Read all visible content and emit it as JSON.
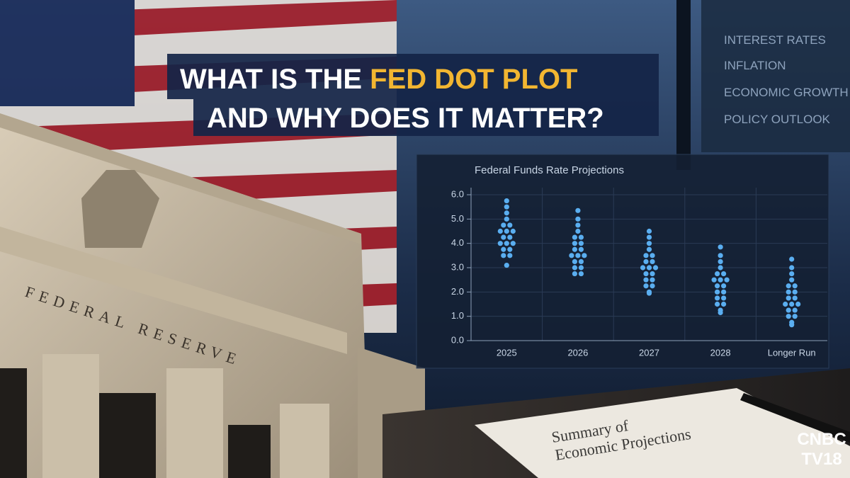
{
  "headline": {
    "line1_start": "WHAT IS THE",
    "line1_highlight": "FED DOT PLOT",
    "line2": "AND WHY DOES IT MATTER?"
  },
  "side_panel": [
    "INTEREST RATES",
    "INFLATION",
    "ECONOMIC GROWTH",
    "POLICY OUTLOOK"
  ],
  "building_inscription": "FEDERAL RESERVE",
  "document": {
    "line1": "Summary of",
    "line2": "Economic Projections"
  },
  "logo": {
    "line1": "CNBC",
    "line2": "TV18"
  },
  "chart_data": {
    "type": "dot",
    "title": "Federal Funds Rate Projections",
    "color": "#5aaef0",
    "categories": [
      "2025",
      "2026",
      "2027",
      "2028",
      "Longer Run"
    ],
    "values": [
      [
        5.75,
        5.5,
        5.25,
        5.0,
        4.75,
        4.75,
        4.5,
        4.5,
        4.5,
        4.25,
        4.25,
        4.0,
        4.0,
        4.0,
        3.75,
        3.75,
        3.5,
        3.5,
        3.1
      ],
      [
        5.35,
        5.0,
        4.75,
        4.5,
        4.25,
        4.25,
        4.0,
        4.0,
        3.75,
        3.75,
        3.5,
        3.5,
        3.5,
        3.25,
        3.25,
        3.0,
        3.0,
        2.75,
        2.75
      ],
      [
        4.5,
        4.25,
        4.0,
        3.75,
        3.5,
        3.5,
        3.25,
        3.25,
        3.0,
        3.0,
        3.0,
        2.75,
        2.75,
        2.5,
        2.5,
        2.25,
        2.25,
        2.0,
        1.95
      ],
      [
        3.85,
        3.5,
        3.25,
        3.0,
        2.75,
        2.75,
        2.5,
        2.5,
        2.5,
        2.25,
        2.25,
        2.0,
        2.0,
        1.75,
        1.75,
        1.5,
        1.5,
        1.25,
        1.15
      ],
      [
        3.35,
        3.0,
        2.75,
        2.5,
        2.25,
        2.25,
        2.0,
        2.0,
        1.75,
        1.75,
        1.5,
        1.5,
        1.5,
        1.25,
        1.25,
        1.0,
        1.0,
        0.75,
        0.65
      ]
    ],
    "ylim": [
      0,
      6
    ],
    "yticks": [
      {
        "value": 0,
        "label": "0.0"
      },
      {
        "value": 1,
        "label": "1.0"
      },
      {
        "value": 2,
        "label": "2.0"
      },
      {
        "value": 3,
        "label": "3.0"
      },
      {
        "value": 4,
        "label": "4.0"
      },
      {
        "value": 5,
        "label": "5.0"
      },
      {
        "value": 6,
        "label": "6.0"
      }
    ],
    "grid": true
  }
}
